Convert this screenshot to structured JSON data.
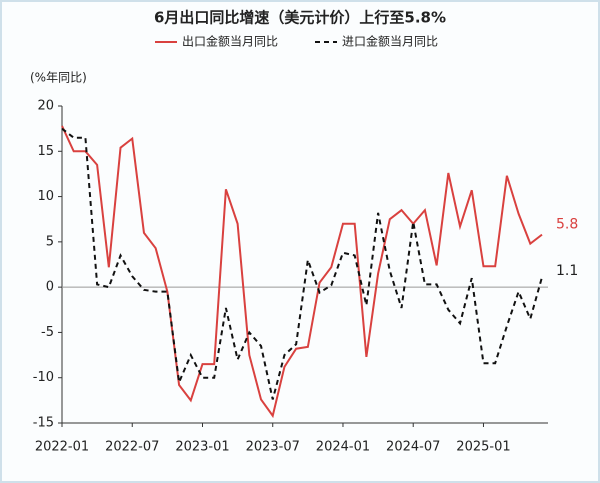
{
  "chart_data": {
    "type": "line",
    "title": "6月出口同比增速（美元计价）上行至5.8%",
    "y_label": "(%年同比)",
    "categories": [
      "2022-01",
      null,
      null,
      null,
      null,
      null,
      "2022-07",
      null,
      null,
      null,
      null,
      null,
      "2023-01",
      null,
      null,
      null,
      null,
      null,
      "2023-07",
      null,
      null,
      null,
      null,
      null,
      "2024-01",
      null,
      null,
      null,
      null,
      null,
      "2024-07",
      null,
      null,
      null,
      null,
      null,
      "2025-01",
      null,
      null,
      null,
      null,
      null
    ],
    "series": [
      {
        "name": "出口金额当月同比",
        "color": "#d9413f",
        "dash": false,
        "values": [
          17.8,
          15.0,
          15.0,
          13.5,
          2.2,
          15.4,
          16.4,
          6.0,
          4.3,
          -0.5,
          -10.8,
          -12.5,
          -8.5,
          -8.5,
          10.8,
          7.0,
          -7.5,
          -12.4,
          -14.2,
          -8.8,
          -6.8,
          -6.6,
          0.5,
          2.2,
          7.0,
          7.0,
          -7.7,
          1.5,
          7.5,
          8.5,
          7.0,
          8.5,
          2.4,
          12.6,
          6.7,
          10.7,
          2.3,
          2.3,
          12.3,
          8.1,
          4.8,
          5.8
        ]
      },
      {
        "name": "进口金额当月同比",
        "color": "#111111",
        "dash": true,
        "values": [
          17.5,
          16.5,
          16.5,
          0.3,
          0.0,
          3.5,
          1.2,
          -0.3,
          -0.5,
          -0.5,
          -10.5,
          -7.5,
          -10.0,
          -10.0,
          -2.3,
          -8.0,
          -5.0,
          -6.5,
          -12.4,
          -7.5,
          -6.3,
          3.0,
          -0.6,
          0.2,
          3.8,
          3.5,
          -2.0,
          8.2,
          1.8,
          -2.3,
          7.2,
          0.3,
          0.3,
          -2.5,
          -4.0,
          1.0,
          -8.4,
          -8.4,
          -4.3,
          -0.5,
          -3.5,
          1.1
        ]
      }
    ],
    "annotations": [
      "5.8",
      "1.1"
    ],
    "ylim": [
      -15,
      20
    ],
    "yticks": [
      -15,
      -10,
      -5,
      0,
      5,
      10,
      15,
      20
    ],
    "grid": false
  }
}
